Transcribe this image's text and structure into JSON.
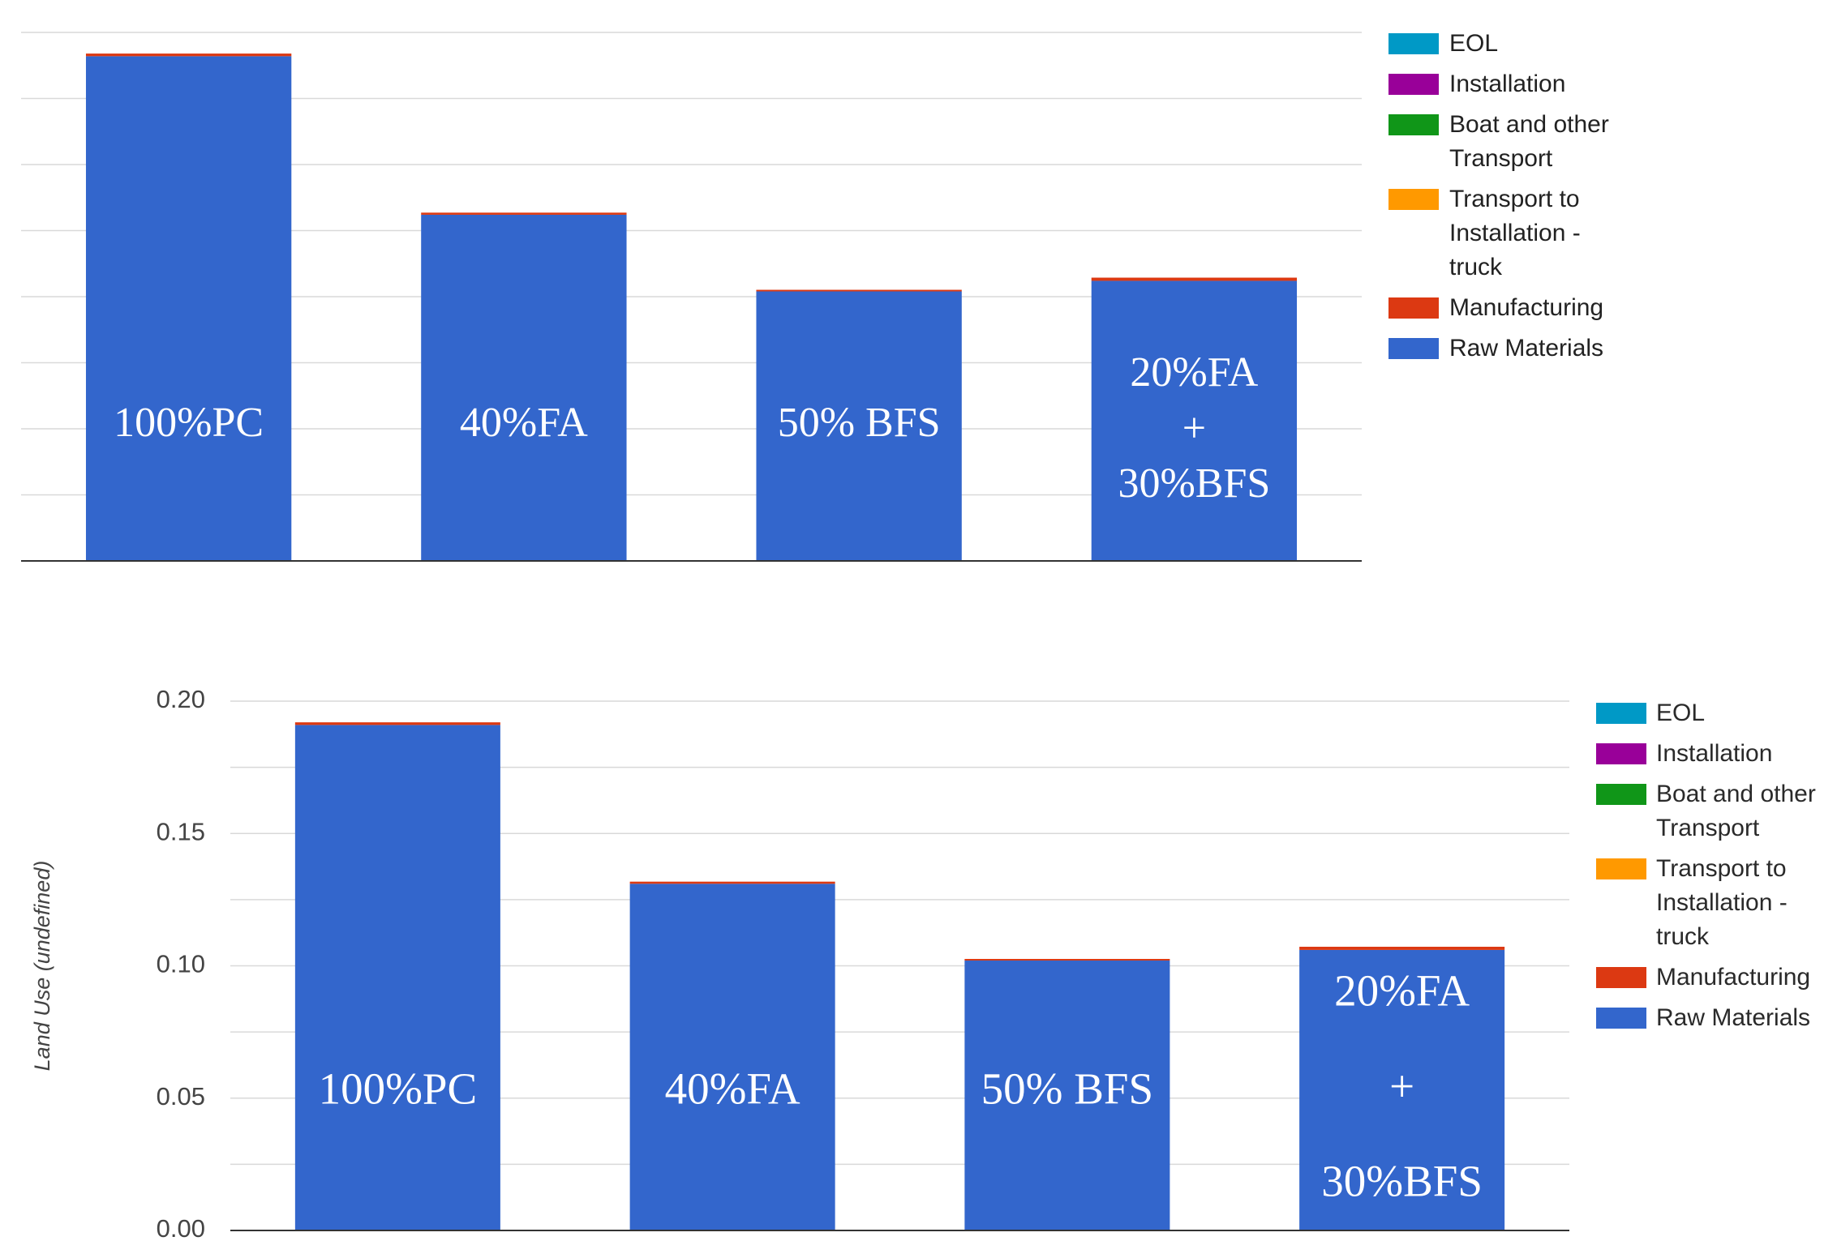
{
  "chart_data": [
    {
      "type": "bar",
      "stacked": true,
      "grid": true,
      "legend": "right",
      "categories": [
        [
          "100%PC"
        ],
        [
          "40%FA"
        ],
        [
          "50% BFS"
        ],
        [
          "20%FA",
          "+",
          "30%BFS"
        ]
      ],
      "ylim": [
        0,
        0.2
      ],
      "grid_step": 0.025,
      "yticks": [],
      "series": [
        {
          "name": "EOL",
          "color": "#0099c6",
          "values": [
            0,
            0,
            0,
            0
          ]
        },
        {
          "name": "Installation",
          "color": "#990099",
          "values": [
            0,
            0,
            0,
            0
          ]
        },
        {
          "name": "Boat and other Transport",
          "color": "#109618",
          "values": [
            0,
            0,
            0,
            0
          ]
        },
        {
          "name": "Transport to Installation - truck",
          "color": "#ff9900",
          "values": [
            0,
            0,
            0,
            0
          ]
        },
        {
          "name": "Manufacturing",
          "color": "#dc3912",
          "values": [
            0.001,
            0.0008,
            0.0006,
            0.0012
          ]
        },
        {
          "name": "Raw Materials",
          "color": "#3366cc",
          "values": [
            0.191,
            0.131,
            0.102,
            0.106
          ]
        }
      ]
    },
    {
      "type": "bar",
      "stacked": true,
      "grid": true,
      "legend": "right",
      "categories": [
        [
          "100%PC"
        ],
        [
          "40%FA"
        ],
        [
          "50% BFS"
        ],
        [
          "20%FA",
          "+",
          "30%BFS"
        ]
      ],
      "ylim": [
        0,
        0.2
      ],
      "grid_step": 0.025,
      "yticks": [
        "0.00",
        "0.05",
        "0.10",
        "0.15",
        "0.20"
      ],
      "ylabel": "Land Use (undefined)",
      "series": [
        {
          "name": "EOL",
          "color": "#0099c6",
          "values": [
            0,
            0,
            0,
            0
          ]
        },
        {
          "name": "Installation",
          "color": "#990099",
          "values": [
            0,
            0,
            0,
            0
          ]
        },
        {
          "name": "Boat and other Transport",
          "color": "#109618",
          "values": [
            0,
            0,
            0,
            0
          ]
        },
        {
          "name": "Transport to Installation - truck",
          "color": "#ff9900",
          "values": [
            0,
            0,
            0,
            0
          ]
        },
        {
          "name": "Manufacturing",
          "color": "#dc3912",
          "values": [
            0.001,
            0.0008,
            0.0006,
            0.0012
          ]
        },
        {
          "name": "Raw Materials",
          "color": "#3366cc",
          "values": [
            0.191,
            0.131,
            0.102,
            0.106
          ]
        }
      ]
    }
  ]
}
